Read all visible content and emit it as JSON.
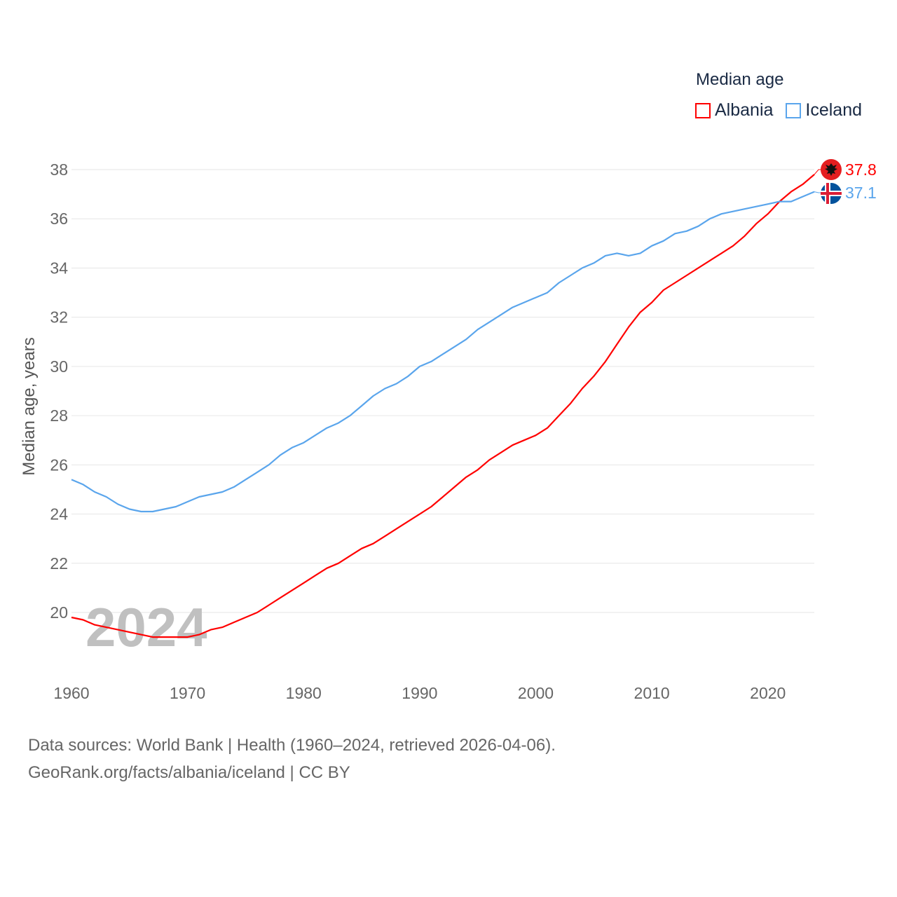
{
  "chart_data": {
    "type": "line",
    "title": "Median age",
    "xlabel": "",
    "ylabel": "Median age, years",
    "xlim": [
      1960,
      2024
    ],
    "ylim": [
      18,
      38.5
    ],
    "yticks": [
      20,
      22,
      24,
      26,
      28,
      30,
      32,
      34,
      36,
      38
    ],
    "xticks": [
      1960,
      1970,
      1980,
      1990,
      2000,
      2010,
      2020
    ],
    "grid": true,
    "legend_position": "top-right",
    "watermark_year": "2024",
    "x": [
      1960,
      1961,
      1962,
      1963,
      1964,
      1965,
      1966,
      1967,
      1968,
      1969,
      1970,
      1971,
      1972,
      1973,
      1974,
      1975,
      1976,
      1977,
      1978,
      1979,
      1980,
      1981,
      1982,
      1983,
      1984,
      1985,
      1986,
      1987,
      1988,
      1989,
      1990,
      1991,
      1992,
      1993,
      1994,
      1995,
      1996,
      1997,
      1998,
      1999,
      2000,
      2001,
      2002,
      2003,
      2004,
      2005,
      2006,
      2007,
      2008,
      2009,
      2010,
      2011,
      2012,
      2013,
      2014,
      2015,
      2016,
      2017,
      2018,
      2019,
      2020,
      2021,
      2022,
      2023,
      2024
    ],
    "series": [
      {
        "name": "Albania",
        "color": "#ff0000",
        "end_label": "37.8",
        "values": [
          19.8,
          19.7,
          19.5,
          19.4,
          19.3,
          19.2,
          19.1,
          19.0,
          19.0,
          19.0,
          19.0,
          19.1,
          19.3,
          19.4,
          19.6,
          19.8,
          20.0,
          20.3,
          20.6,
          20.9,
          21.2,
          21.5,
          21.8,
          22.0,
          22.3,
          22.6,
          22.8,
          23.1,
          23.4,
          23.7,
          24.0,
          24.3,
          24.7,
          25.1,
          25.5,
          25.8,
          26.2,
          26.5,
          26.8,
          27.0,
          27.2,
          27.5,
          28.0,
          28.5,
          29.1,
          29.6,
          30.2,
          30.9,
          31.6,
          32.2,
          32.6,
          33.1,
          33.4,
          33.7,
          34.0,
          34.3,
          34.6,
          34.9,
          35.3,
          35.8,
          36.2,
          36.7,
          37.1,
          37.4,
          37.8
        ]
      },
      {
        "name": "Iceland",
        "color": "#5aa5ec",
        "end_label": "37.1",
        "values": [
          25.4,
          25.2,
          24.9,
          24.7,
          24.4,
          24.2,
          24.1,
          24.1,
          24.2,
          24.3,
          24.5,
          24.7,
          24.8,
          24.9,
          25.1,
          25.4,
          25.7,
          26.0,
          26.4,
          26.7,
          26.9,
          27.2,
          27.5,
          27.7,
          28.0,
          28.4,
          28.8,
          29.1,
          29.3,
          29.6,
          30.0,
          30.2,
          30.5,
          30.8,
          31.1,
          31.5,
          31.8,
          32.1,
          32.4,
          32.6,
          32.8,
          33.0,
          33.4,
          33.7,
          34.0,
          34.2,
          34.5,
          34.6,
          34.5,
          34.6,
          34.9,
          35.1,
          35.4,
          35.5,
          35.7,
          36.0,
          36.2,
          36.3,
          36.4,
          36.5,
          36.6,
          36.7,
          36.7,
          36.9,
          37.1
        ]
      }
    ]
  },
  "footer": {
    "line1": "Data sources: World Bank | Health (1960–2024, retrieved 2026-04-06).",
    "line2": "GeoRank.org/facts/albania/iceland | CC BY"
  }
}
